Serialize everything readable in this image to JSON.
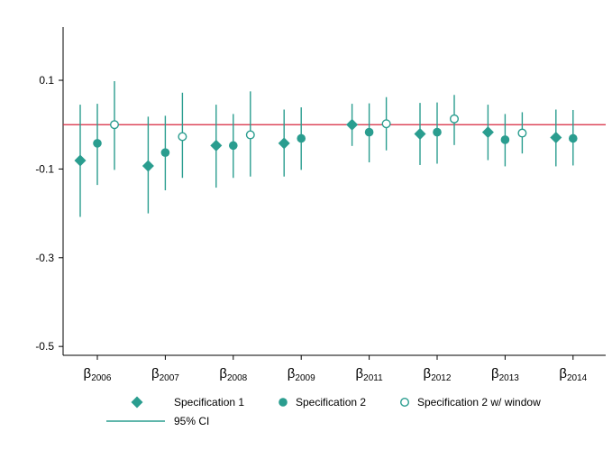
{
  "chart_data": {
    "type": "scatter",
    "categories": [
      {
        "symbol": "β",
        "sub": "2006"
      },
      {
        "symbol": "β",
        "sub": "2007"
      },
      {
        "symbol": "β",
        "sub": "2008"
      },
      {
        "symbol": "β",
        "sub": "2009"
      },
      {
        "symbol": "β",
        "sub": "2011"
      },
      {
        "symbol": "β",
        "sub": "2012"
      },
      {
        "symbol": "β",
        "sub": "2013"
      },
      {
        "symbol": "β",
        "sub": "2014"
      }
    ],
    "ylim": [
      -0.52,
      0.22
    ],
    "yticks": [
      0.1,
      -0.1,
      -0.3,
      -0.5
    ],
    "ytick_labels": [
      "0.1",
      "-0.1",
      "-0.3",
      "-0.5"
    ],
    "reference_line": {
      "y": 0,
      "color": "#d7263d"
    },
    "grid": false,
    "legend_position": "bottom",
    "series": [
      {
        "name": "Specification 1",
        "marker": "diamond",
        "color": "#2a9d8f",
        "values": [
          -0.081,
          -0.093,
          -0.047,
          -0.042,
          0.0,
          -0.021,
          -0.017,
          -0.029
        ],
        "ci_low": [
          -0.208,
          -0.2,
          -0.142,
          -0.117,
          -0.048,
          -0.091,
          -0.08,
          -0.094
        ],
        "ci_high": [
          0.045,
          0.018,
          0.045,
          0.034,
          0.047,
          0.049,
          0.045,
          0.034
        ]
      },
      {
        "name": "Specification 2",
        "marker": "circle-filled",
        "color": "#2a9d8f",
        "values": [
          -0.042,
          -0.063,
          -0.047,
          -0.031,
          -0.017,
          -0.017,
          -0.034,
          -0.031
        ],
        "ci_low": [
          -0.136,
          -0.148,
          -0.12,
          -0.102,
          -0.085,
          -0.088,
          -0.094,
          -0.092
        ],
        "ci_high": [
          0.047,
          0.02,
          0.024,
          0.039,
          0.048,
          0.05,
          0.024,
          0.033
        ]
      },
      {
        "name": "Specification 2 w/ window",
        "marker": "circle-hollow",
        "color": "#2a9d8f",
        "values": [
          0.0,
          -0.027,
          -0.023,
          null,
          0.002,
          0.013,
          -0.019,
          null
        ],
        "ci_low": [
          -0.102,
          -0.12,
          -0.117,
          null,
          -0.058,
          -0.046,
          -0.065,
          null
        ],
        "ci_high": [
          0.098,
          0.072,
          0.075,
          null,
          0.062,
          0.067,
          0.028,
          null
        ]
      }
    ],
    "legend": [
      {
        "label": "Specification 1",
        "marker": "diamond"
      },
      {
        "label": "Specification 2",
        "marker": "circle-filled"
      },
      {
        "label": "Specification 2 w/ window",
        "marker": "circle-hollow"
      },
      {
        "label": "95% CI",
        "marker": "line"
      }
    ]
  }
}
